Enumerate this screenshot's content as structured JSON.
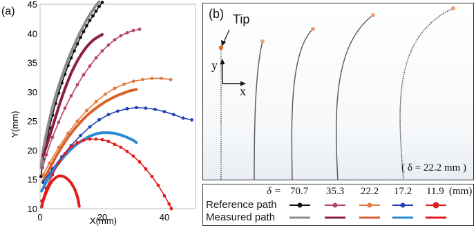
{
  "panel_a": {
    "label": "(a)",
    "chart_data": {
      "type": "line",
      "xlabel": "X(mm)",
      "ylabel": "Y(mm)",
      "xlim": [
        0,
        50
      ],
      "ylim": [
        10,
        45
      ],
      "x_ticks": [
        0,
        20,
        40
      ],
      "y_ticks": [
        10,
        15,
        20,
        25,
        30,
        35,
        40,
        45
      ],
      "grid": false,
      "series": [
        {
          "name": "70.7",
          "kind": "reference",
          "color": "#111111",
          "points": [
            [
              0.3,
              15.5
            ],
            [
              1,
              18.5
            ],
            [
              2,
              21.2
            ],
            [
              3,
              23.8
            ],
            [
              4,
              26
            ],
            [
              5,
              28
            ],
            [
              6,
              29.8
            ],
            [
              7,
              31.5
            ],
            [
              8,
              33
            ],
            [
              9,
              34.5
            ],
            [
              10,
              35.8
            ],
            [
              11,
              37
            ],
            [
              12,
              38.2
            ],
            [
              13,
              39.3
            ],
            [
              14,
              40.3
            ],
            [
              15,
              41.3
            ],
            [
              16,
              42.2
            ],
            [
              17,
              43
            ],
            [
              18,
              43.8
            ],
            [
              19,
              44.6
            ],
            [
              20,
              45.3
            ]
          ]
        },
        {
          "name": "70.7",
          "kind": "measured",
          "color": "#8c8c8c",
          "points": [
            [
              0.3,
              17
            ],
            [
              1,
              20
            ],
            [
              2,
              22.8
            ],
            [
              3,
              25.2
            ],
            [
              4,
              27.4
            ],
            [
              5,
              29.3
            ],
            [
              6,
              31
            ],
            [
              7,
              32.6
            ],
            [
              8,
              34.1
            ],
            [
              9,
              35.5
            ],
            [
              10,
              36.8
            ],
            [
              11,
              38
            ],
            [
              12,
              39.2
            ],
            [
              13,
              40.3
            ],
            [
              14,
              41.3
            ],
            [
              15,
              42.3
            ],
            [
              16,
              43.2
            ],
            [
              17,
              44
            ],
            [
              18,
              44.8
            ],
            [
              19,
              45.4
            ]
          ]
        },
        {
          "name": "35.3",
          "kind": "reference",
          "color": "#b4456b",
          "points": [
            [
              0.8,
              17
            ],
            [
              2,
              19.2
            ],
            [
              4,
              22.2
            ],
            [
              6,
              24.8
            ],
            [
              8,
              27.2
            ],
            [
              10,
              29.3
            ],
            [
              12,
              31.2
            ],
            [
              14,
              32.9
            ],
            [
              16,
              34.4
            ],
            [
              18,
              35.8
            ],
            [
              20,
              37
            ],
            [
              22,
              38
            ],
            [
              24,
              38.9
            ],
            [
              26,
              39.6
            ],
            [
              28,
              40.1
            ],
            [
              30,
              40.5
            ],
            [
              32,
              40.7
            ]
          ]
        },
        {
          "name": "35.3",
          "kind": "measured",
          "color": "#8e1d3e",
          "points": [
            [
              1,
              19
            ],
            [
              2,
              20.6
            ],
            [
              3,
              22.3
            ],
            [
              4,
              24
            ],
            [
              5,
              25.7
            ],
            [
              6,
              27.4
            ],
            [
              7,
              29
            ],
            [
              8,
              30.5
            ],
            [
              9,
              31.9
            ],
            [
              10,
              33.2
            ],
            [
              11,
              34.3
            ],
            [
              12,
              35.3
            ],
            [
              13,
              36.2
            ],
            [
              14,
              37
            ],
            [
              15,
              37.7
            ],
            [
              16,
              38.3
            ],
            [
              17,
              38.8
            ],
            [
              18,
              39.2
            ],
            [
              19,
              39.5
            ],
            [
              20,
              39.8
            ]
          ]
        },
        {
          "name": "22.2",
          "kind": "reference",
          "color": "#e07a3a",
          "points": [
            [
              1,
              15.8
            ],
            [
              3,
              17.8
            ],
            [
              6,
              20.5
            ],
            [
              9,
              22.9
            ],
            [
              12,
              25
            ],
            [
              15,
              26.8
            ],
            [
              18,
              28.3
            ],
            [
              21,
              29.6
            ],
            [
              24,
              30.6
            ],
            [
              27,
              31.3
            ],
            [
              30,
              31.8
            ],
            [
              33,
              32.1
            ],
            [
              36,
              32.3
            ],
            [
              39,
              32.3
            ],
            [
              42,
              32.1
            ]
          ]
        },
        {
          "name": "22.2",
          "kind": "measured",
          "color": "#d9622b",
          "points": [
            [
              1,
              14.8
            ],
            [
              3,
              16.8
            ],
            [
              5,
              18.8
            ],
            [
              7,
              20.6
            ],
            [
              9,
              22.2
            ],
            [
              11,
              23.6
            ],
            [
              13,
              24.8
            ],
            [
              15,
              25.9
            ],
            [
              17,
              26.8
            ],
            [
              19,
              27.6
            ],
            [
              21,
              28.3
            ],
            [
              23,
              28.9
            ],
            [
              25,
              29.4
            ],
            [
              27,
              29.8
            ],
            [
              29,
              30.2
            ],
            [
              31,
              30.4
            ]
          ]
        },
        {
          "name": "17.2",
          "kind": "reference",
          "color": "#1f3fb5",
          "points": [
            [
              1,
              14.5
            ],
            [
              4,
              16.8
            ],
            [
              7,
              18.9
            ],
            [
              10,
              20.8
            ],
            [
              13,
              22.5
            ],
            [
              16,
              24
            ],
            [
              19,
              25.2
            ],
            [
              22,
              26.1
            ],
            [
              25,
              26.7
            ],
            [
              28,
              27.1
            ],
            [
              31,
              27.3
            ],
            [
              34,
              27.2
            ],
            [
              37,
              27
            ],
            [
              40,
              26.6
            ],
            [
              43,
              26.1
            ],
            [
              46,
              25.5
            ],
            [
              48.8,
              25.2
            ]
          ]
        },
        {
          "name": "17.2",
          "kind": "measured",
          "color": "#2b8ad4",
          "points": [
            [
              0.5,
              13
            ],
            [
              2,
              14.6
            ],
            [
              4,
              16.3
            ],
            [
              6,
              17.8
            ],
            [
              8,
              19.1
            ],
            [
              10,
              20.2
            ],
            [
              12,
              21.1
            ],
            [
              14,
              21.8
            ],
            [
              16,
              22.4
            ],
            [
              18,
              22.8
            ],
            [
              20,
              23
            ],
            [
              22,
              23
            ],
            [
              24,
              22.9
            ],
            [
              26,
              22.6
            ],
            [
              28,
              22.2
            ],
            [
              30,
              21.7
            ],
            [
              31,
              21.3
            ]
          ]
        },
        {
          "name": "11.9",
          "kind": "reference",
          "color": "#e31b1b",
          "points": [
            [
              0.6,
              11.3
            ],
            [
              2,
              13.5
            ],
            [
              4,
              15.8
            ],
            [
              6,
              17.8
            ],
            [
              8,
              19.4
            ],
            [
              10,
              20.6
            ],
            [
              12,
              21.3
            ],
            [
              14,
              21.7
            ],
            [
              16,
              21.9
            ],
            [
              18,
              21.9
            ],
            [
              20,
              21.8
            ],
            [
              22,
              21.5
            ],
            [
              24,
              21
            ],
            [
              26,
              20.5
            ],
            [
              28,
              19.8
            ],
            [
              30,
              19
            ],
            [
              32,
              18
            ],
            [
              34,
              16.8
            ],
            [
              36,
              15.5
            ],
            [
              38,
              14
            ],
            [
              40,
              12.2
            ],
            [
              41.5,
              10.8
            ],
            [
              42.2,
              10
            ]
          ]
        },
        {
          "name": "11.9",
          "kind": "measured",
          "color": "#e31b1b",
          "points": [
            [
              0.5,
              10.3
            ],
            [
              1,
              11.4
            ],
            [
              2,
              12.8
            ],
            [
              3,
              14
            ],
            [
              4,
              14.8
            ],
            [
              5,
              15.3
            ],
            [
              6,
              15.6
            ],
            [
              7,
              15.6
            ],
            [
              8,
              15.4
            ],
            [
              9,
              15
            ],
            [
              10,
              14.4
            ],
            [
              11,
              13.5
            ],
            [
              11.8,
              12.4
            ],
            [
              12.3,
              11.4
            ],
            [
              12.6,
              10.4
            ]
          ]
        }
      ]
    }
  },
  "panel_b": {
    "label": "(b)",
    "tip_label": "Tip",
    "axis_y": "y",
    "axis_x": "x",
    "delta_note": "( δ = 22.2 mm )"
  },
  "legend": {
    "delta_label": "δ =",
    "values": [
      "70.7",
      "35.3",
      "22.2",
      "17.2",
      "11.9"
    ],
    "unit": "(mm)",
    "row_reference": "Reference path",
    "row_measured": "Measured path",
    "reference_colors": [
      "#111111",
      "#b4456b",
      "#e07a3a",
      "#1f3fb5",
      "#e31b1b"
    ],
    "measured_colors": [
      "#8c8c8c",
      "#8e1d3e",
      "#d9622b",
      "#2b8ad4",
      "#e31b1b"
    ]
  }
}
